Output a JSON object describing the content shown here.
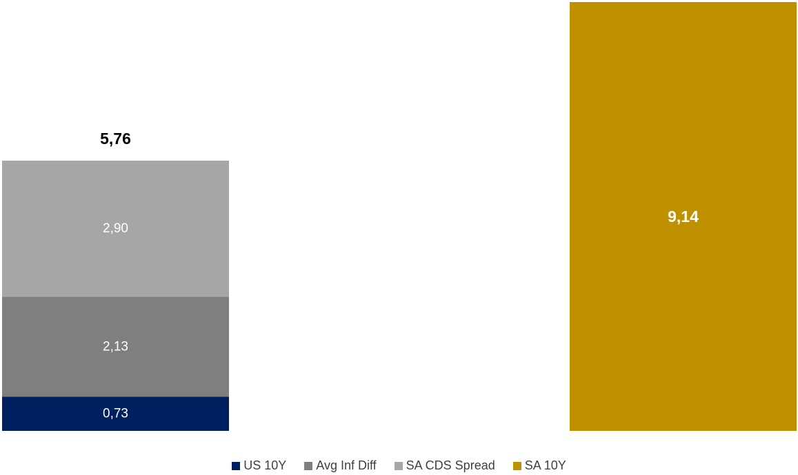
{
  "chart_data": {
    "type": "bar",
    "stacked": true,
    "categories": [
      "",
      ""
    ],
    "series": [
      {
        "name": "US 10Y",
        "values": [
          0.73,
          null
        ],
        "color": "#002060",
        "label_text": "0,73"
      },
      {
        "name": "Avg Inf Diff",
        "values": [
          2.13,
          null
        ],
        "color": "#7F7F7F",
        "label_text": "2,13"
      },
      {
        "name": "SA CDS Spread",
        "values": [
          2.9,
          null
        ],
        "color": "#A6A6A6",
        "label_text": "2,90"
      },
      {
        "name": "SA 10Y",
        "values": [
          null,
          9.14
        ],
        "color": "#BF9000",
        "label_text": "9,14"
      }
    ],
    "total_label": "5,76",
    "ylim": [
      0,
      9.14
    ],
    "grid": false,
    "legend_position": "bottom"
  }
}
